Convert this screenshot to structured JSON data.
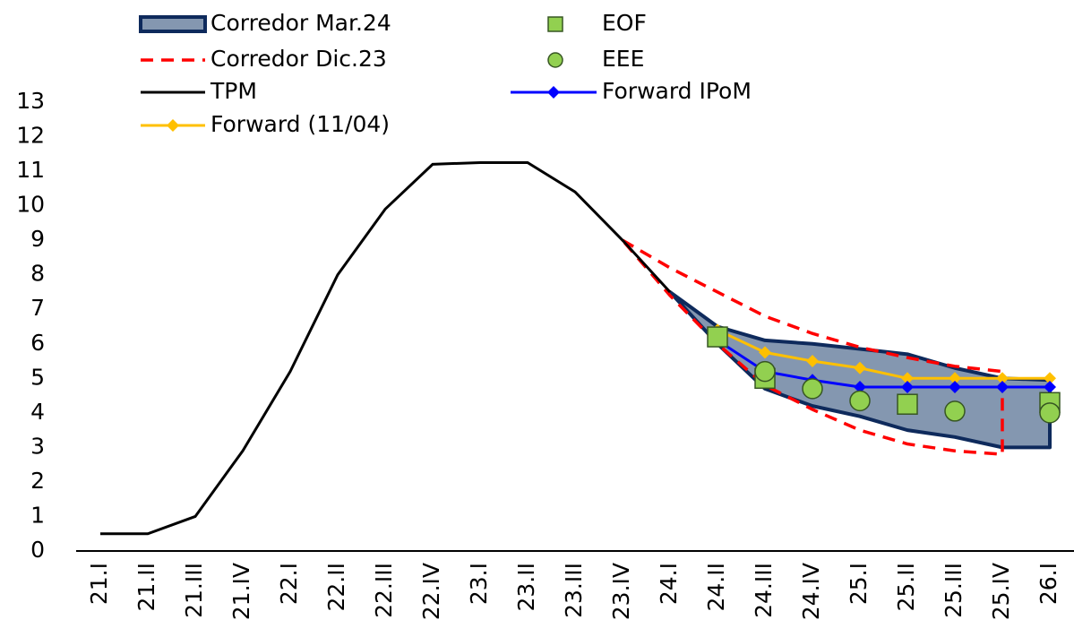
{
  "chart_data": {
    "type": "line",
    "categories": [
      "21.I",
      "21.II",
      "21.III",
      "21.IV",
      "22.I",
      "22.II",
      "22.III",
      "22.IV",
      "23.I",
      "23.II",
      "23.III",
      "23.IV",
      "24.I",
      "24.II",
      "24.III",
      "24.IV",
      "25.I",
      "25.II",
      "25.III",
      "25.IV",
      "26.I"
    ],
    "ylim": [
      0,
      13
    ],
    "yticks": [
      0,
      1,
      2,
      3,
      4,
      5,
      6,
      7,
      8,
      9,
      10,
      11,
      12,
      13
    ],
    "legend": "top-left",
    "series": [
      {
        "name": "Corredor Mar.24",
        "style": "band",
        "color": "#8497b0",
        "edge": "#0e2a5c",
        "upper": [
          null,
          null,
          null,
          null,
          null,
          null,
          null,
          null,
          null,
          null,
          null,
          null,
          7.5,
          6.5,
          6.1,
          6.0,
          5.85,
          5.7,
          5.3,
          5.0,
          4.95
        ],
        "lower": [
          null,
          null,
          null,
          null,
          null,
          null,
          null,
          null,
          null,
          null,
          null,
          null,
          7.5,
          6.0,
          4.7,
          4.2,
          3.9,
          3.5,
          3.3,
          3.0,
          3.0
        ]
      },
      {
        "name": "EOF",
        "style": "square",
        "color": "#92d050",
        "values": [
          null,
          null,
          null,
          null,
          null,
          null,
          null,
          null,
          null,
          null,
          null,
          null,
          null,
          6.2,
          5.0,
          null,
          null,
          4.25,
          null,
          null,
          4.3
        ]
      },
      {
        "name": "Corredor Dic.23",
        "style": "dashed",
        "color": "#ff0000",
        "upper": [
          null,
          null,
          null,
          null,
          null,
          null,
          null,
          null,
          null,
          null,
          null,
          9.0,
          8.2,
          7.5,
          6.8,
          6.3,
          5.9,
          5.6,
          5.35,
          5.2,
          null
        ],
        "lower": [
          null,
          null,
          null,
          null,
          null,
          null,
          null,
          null,
          null,
          null,
          null,
          9.0,
          7.4,
          6.0,
          4.8,
          4.1,
          3.5,
          3.1,
          2.9,
          2.8,
          null
        ]
      },
      {
        "name": "EEE",
        "style": "circle",
        "color": "#92d050",
        "values": [
          null,
          null,
          null,
          null,
          null,
          null,
          null,
          null,
          null,
          null,
          null,
          null,
          null,
          null,
          5.2,
          4.7,
          4.35,
          null,
          4.05,
          null,
          4.0
        ]
      },
      {
        "name": "TPM",
        "style": "line",
        "color": "#000000",
        "values": [
          0.5,
          0.5,
          1.0,
          2.9,
          5.2,
          8.0,
          9.9,
          11.2,
          11.25,
          11.25,
          10.4,
          9.0,
          7.5,
          null,
          null,
          null,
          null,
          null,
          null,
          null,
          null
        ]
      },
      {
        "name": "Forward IPoM",
        "style": "diamond-line",
        "color": "#0000ff",
        "values": [
          null,
          null,
          null,
          null,
          null,
          null,
          null,
          null,
          null,
          null,
          null,
          null,
          null,
          6.1,
          5.2,
          4.95,
          4.75,
          4.75,
          4.75,
          4.75,
          4.75
        ]
      },
      {
        "name": "Forward (11/04)",
        "style": "diamond-line",
        "color": "#ffc000",
        "values": [
          null,
          null,
          null,
          null,
          null,
          null,
          null,
          null,
          null,
          null,
          null,
          null,
          null,
          6.4,
          5.75,
          5.5,
          5.3,
          5.0,
          5.0,
          5.0,
          5.0
        ]
      }
    ]
  }
}
